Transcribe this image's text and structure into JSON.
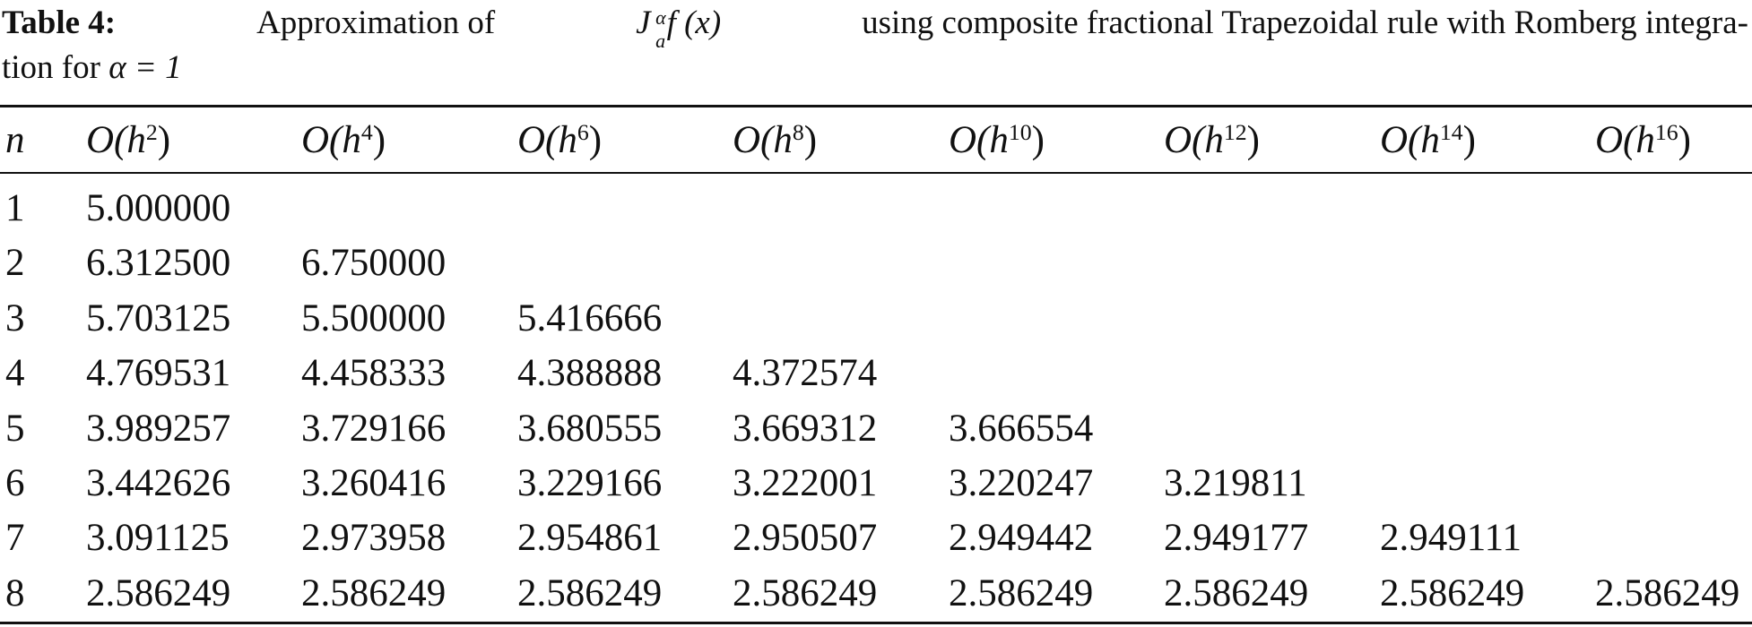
{
  "caption": {
    "label": "Table 4:",
    "text1": "Approximation of",
    "operator": "J",
    "operator_sup": "α",
    "operator_sub": "a",
    "operand": "f (x)",
    "text2": "using composite fractional Trapezoidal rule with Romberg integra-",
    "text3": "tion for",
    "condition": "α = 1"
  },
  "table": {
    "header": {
      "n": "n",
      "columns": [
        {
          "prefix": "O(h",
          "exponent": "2",
          "suffix": ")"
        },
        {
          "prefix": "O(h",
          "exponent": "4",
          "suffix": ")"
        },
        {
          "prefix": "O(h",
          "exponent": "6",
          "suffix": ")"
        },
        {
          "prefix": "O(h",
          "exponent": "8",
          "suffix": ")"
        },
        {
          "prefix": "O(h",
          "exponent": "10",
          "suffix": ")"
        },
        {
          "prefix": "O(h",
          "exponent": "12",
          "suffix": ")"
        },
        {
          "prefix": "O(h",
          "exponent": "14",
          "suffix": ")"
        },
        {
          "prefix": "O(h",
          "exponent": "16",
          "suffix": ")"
        }
      ]
    },
    "rows": [
      [
        "1",
        "5.000000"
      ],
      [
        "2",
        "6.312500",
        "6.750000"
      ],
      [
        "3",
        "5.703125",
        "5.500000",
        "5.416666"
      ],
      [
        "4",
        "4.769531",
        "4.458333",
        "4.388888",
        "4.372574"
      ],
      [
        "5",
        "3.989257",
        "3.729166",
        "3.680555",
        "3.669312",
        "3.666554"
      ],
      [
        "6",
        "3.442626",
        "3.260416",
        "3.229166",
        "3.222001",
        "3.220247",
        "3.219811"
      ],
      [
        "7",
        "3.091125",
        "2.973958",
        "2.954861",
        "2.950507",
        "2.949442",
        "2.949177",
        "2.949111"
      ],
      [
        "8",
        "2.586249",
        "2.586249",
        "2.586249",
        "2.586249",
        "2.586249",
        "2.586249",
        "2.586249",
        "2.586249"
      ]
    ]
  }
}
